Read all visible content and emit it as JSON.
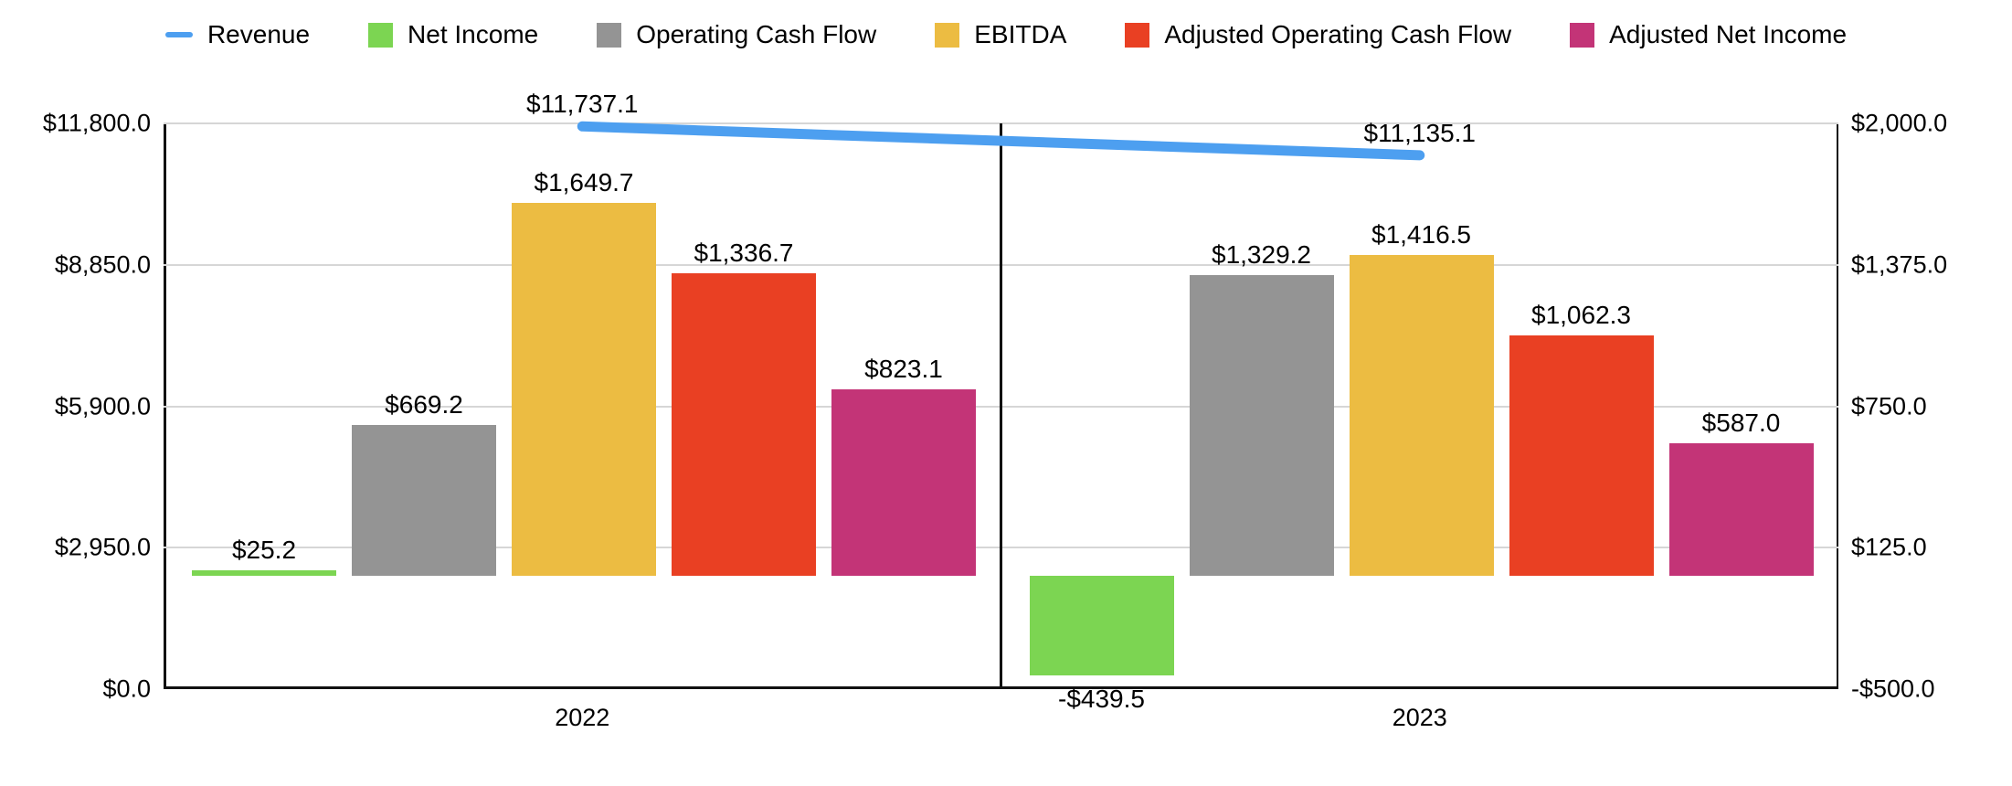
{
  "legend": [
    {
      "label": "Revenue",
      "color": "#4D9FF0",
      "type": "line",
      "icon": "line-swatch"
    },
    {
      "label": "Net Income",
      "color": "#7CD552",
      "type": "box",
      "icon": "box-swatch"
    },
    {
      "label": "Operating Cash Flow",
      "color": "#949494",
      "type": "box",
      "icon": "box-swatch"
    },
    {
      "label": "EBITDA",
      "color": "#ECBC42",
      "type": "box",
      "icon": "box-swatch"
    },
    {
      "label": "Adjusted Operating Cash Flow",
      "color": "#E94023",
      "type": "box",
      "icon": "box-swatch"
    },
    {
      "label": "Adjusted Net Income",
      "color": "#C33477",
      "type": "box",
      "icon": "box-swatch"
    }
  ],
  "chart_data": {
    "type": "bar",
    "subtype": "grouped bars on right axis with line series on left axis",
    "categories": [
      "2022",
      "2023"
    ],
    "series": [
      {
        "name": "Net Income",
        "color": "#7CD552",
        "axis": "right",
        "values": [
          25.2,
          -439.5
        ],
        "labels": [
          "$25.2",
          "-$439.5"
        ]
      },
      {
        "name": "Operating Cash Flow",
        "color": "#949494",
        "axis": "right",
        "values": [
          669.2,
          1329.2
        ],
        "labels": [
          "$669.2",
          "$1,329.2"
        ]
      },
      {
        "name": "EBITDA",
        "color": "#ECBC42",
        "axis": "right",
        "values": [
          1649.7,
          1416.5
        ],
        "labels": [
          "$1,649.7",
          "$1,416.5"
        ]
      },
      {
        "name": "Adjusted Operating Cash Flow",
        "color": "#E94023",
        "axis": "right",
        "values": [
          1336.7,
          1062.3
        ],
        "labels": [
          "$1,336.7",
          "$1,062.3"
        ]
      },
      {
        "name": "Adjusted Net Income",
        "color": "#C33477",
        "axis": "right",
        "values": [
          823.1,
          587.0
        ],
        "labels": [
          "$823.1",
          "$587.0"
        ]
      }
    ],
    "line_series": {
      "name": "Revenue",
      "color": "#4D9FF0",
      "axis": "left",
      "values": [
        11737.1,
        11135.1
      ],
      "labels": [
        "$11,737.1",
        "$11,135.1"
      ]
    },
    "left_axis": {
      "min": 0,
      "max": 11800,
      "ticks": [
        "$0.0",
        "$2,950.0",
        "$5,900.0",
        "$8,850.0",
        "$11,800.0"
      ]
    },
    "right_axis": {
      "min": -500,
      "max": 2000,
      "ticks": [
        "-$500.0",
        "$125.0",
        "$750.0",
        "$1,375.0",
        "$2,000.0"
      ]
    },
    "title": "",
    "xlabel": "",
    "ylabel": "",
    "grid": true,
    "legend_position": "top",
    "grid_color": "#D6D6D6",
    "axis_color": "#111111"
  }
}
